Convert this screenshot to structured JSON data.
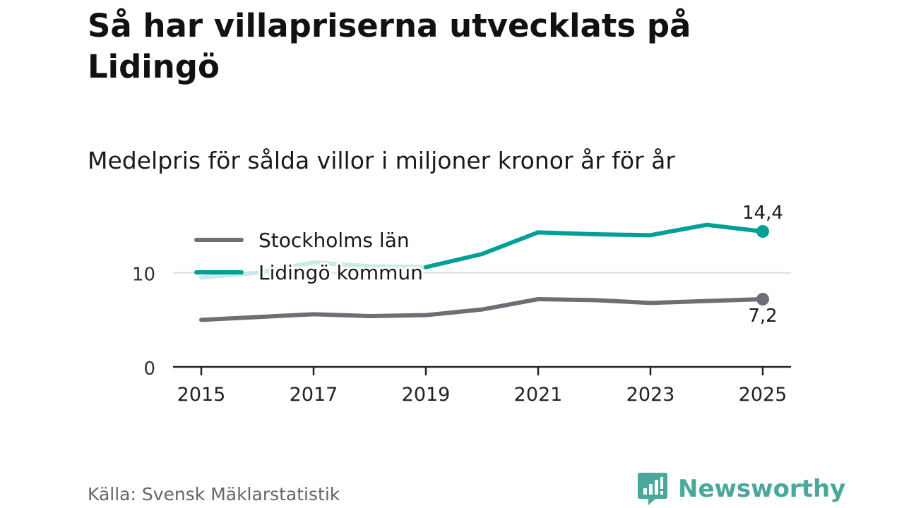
{
  "title": "Så har villapriserna utvecklats på Lidingö",
  "subtitle": "Medelpris för sålda villor i miljoner kronor år för år",
  "source": "Källa: Svensk Mäklarstatistik",
  "brand": {
    "name": "Newsworthy",
    "icon": "newsworthy-logo-icon"
  },
  "colors": {
    "stockholm": "#6f6e76",
    "lidingo": "#00a096",
    "lidingo_faded": "#c7ebe6",
    "axis": "#222222",
    "grid": "#dddddd",
    "brand": "#4aa79b"
  },
  "chart_data": {
    "type": "line",
    "title": "Så har villapriserna utvecklats på Lidingö",
    "subtitle": "Medelpris för sålda villor i miljoner kronor år för år",
    "xlabel": "",
    "ylabel": "",
    "x": [
      2015,
      2016,
      2017,
      2018,
      2019,
      2020,
      2021,
      2022,
      2023,
      2024,
      2025
    ],
    "xticks": [
      "2015",
      "2017",
      "2019",
      "2021",
      "2023",
      "2025"
    ],
    "yticks": [
      {
        "value": 0,
        "label": "0"
      },
      {
        "value": 10,
        "label": "10"
      }
    ],
    "ylim": [
      0,
      15
    ],
    "gridlines": [
      10
    ],
    "legend": {
      "placement": "top-left"
    },
    "series": [
      {
        "name": "Stockholms län",
        "key": "stockholm",
        "values": [
          5.0,
          5.3,
          5.6,
          5.4,
          5.5,
          6.1,
          7.2,
          7.1,
          6.8,
          7.0,
          7.2
        ],
        "end_label": "7,2"
      },
      {
        "name": "Lidingö kommun",
        "key": "lidingo",
        "values": [
          9.5,
          10.0,
          11.1,
          10.7,
          10.6,
          12.0,
          14.3,
          14.1,
          14.0,
          15.1,
          14.4
        ],
        "faded_until": 2019,
        "end_label": "14,4"
      }
    ]
  }
}
